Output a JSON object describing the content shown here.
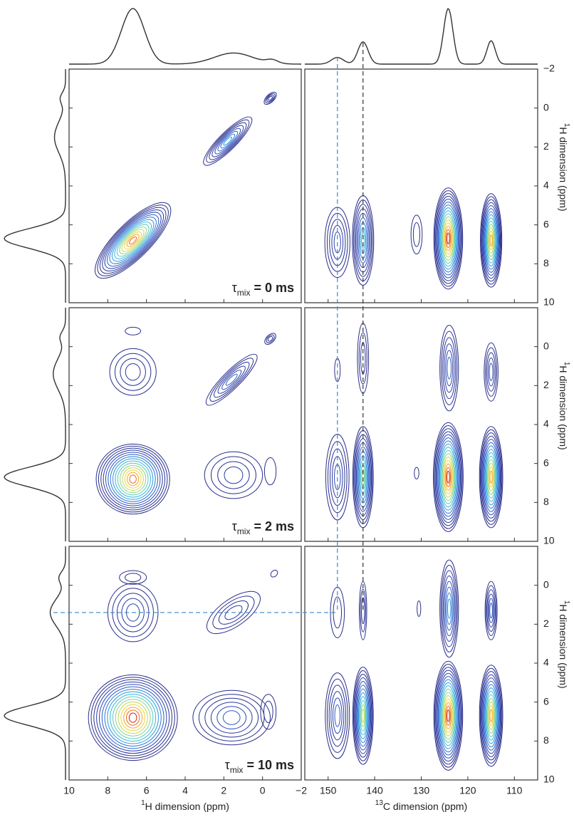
{
  "x_axis_left": {
    "superscript": "1",
    "text": "H dimension (ppm)",
    "xlim": [
      10,
      -2
    ],
    "xticks": [
      10,
      8,
      6,
      4,
      2,
      0,
      {
        "value": -2,
        "label": "−2"
      }
    ]
  },
  "x_axis_right": {
    "superscript": "13",
    "text": "C dimension (ppm)",
    "xlim": [
      155,
      105
    ],
    "xticks": [
      150,
      140,
      130,
      120,
      110
    ]
  },
  "y_axis": {
    "superscript": "1",
    "text": "H dimension (ppm)",
    "ylim": [
      -2,
      10
    ]
  },
  "colormap": [
    "#2a2f8c",
    "#2a2f8c",
    "#2a3294",
    "#2b3aa0",
    "#2c46b2",
    "#2c5cc8",
    "#2a78d8",
    "#2a98e0",
    "#34b8d8",
    "#5cc9b8",
    "#8fd38a",
    "#c3d95a",
    "#f0d43a",
    "#f6a52a",
    "#ee6a20",
    "#d8261c"
  ],
  "line_color": "#333333",
  "top_projection": {
    "h1_peaks": [
      {
        "x": 6.7,
        "h": 1,
        "w": 0.6
      },
      {
        "x": 1.5,
        "h": 0.2,
        "w": 1.0
      },
      {
        "x": -0.5,
        "h": 0.06,
        "w": 0.3
      }
    ],
    "c13_peaks": [
      {
        "x": 148,
        "h": 0.12,
        "w": 1.3
      },
      {
        "x": 142.5,
        "h": 0.4,
        "w": 1.1
      },
      {
        "x": 124.2,
        "h": 1,
        "w": 1.0
      },
      {
        "x": 115,
        "h": 0.42,
        "w": 0.9
      }
    ]
  },
  "rows": [
    {
      "label": {
        "symbol": "τ",
        "subscript": "mix",
        "text": "= 0 ms"
      },
      "yticks": [
        {
          "value": -2,
          "label": "−2"
        },
        0,
        2,
        4,
        6,
        8,
        10
      ],
      "side_projection": [
        {
          "y": 6.7,
          "h": 1,
          "w": 0.5
        },
        {
          "y": 1.5,
          "h": 0.18,
          "w": 0.8
        },
        {
          "y": -0.5,
          "h": 0.08,
          "w": 0.3
        }
      ],
      "h1_peaks": [
        {
          "x": 6.7,
          "y": 6.8,
          "wx": 2.6,
          "wy": 0.9,
          "tilt": 45,
          "levels": 15
        },
        {
          "x": 1.8,
          "y": 1.7,
          "wx": 1.7,
          "wy": 0.45,
          "tilt": 45,
          "levels": 8
        },
        {
          "x": -0.4,
          "y": -0.5,
          "wx": 0.4,
          "wy": 0.2,
          "tilt": 45,
          "levels": 4
        }
      ],
      "c13_peaks": [
        {
          "x": 148,
          "y": 6.9,
          "wx": 2.7,
          "wy": 1.8,
          "tilt": 0,
          "levels": 5
        },
        {
          "x": 142.5,
          "y": 6.8,
          "wx": 2.3,
          "wy": 2.3,
          "tilt": 0,
          "levels": 9
        },
        {
          "x": 131,
          "y": 6.5,
          "wx": 1.2,
          "wy": 1.0,
          "tilt": 0,
          "levels": 2
        },
        {
          "x": 124.2,
          "y": 6.7,
          "wx": 3.1,
          "wy": 2.6,
          "tilt": 0,
          "levels": 16
        },
        {
          "x": 115,
          "y": 6.8,
          "wx": 2.3,
          "wy": 2.4,
          "tilt": 0,
          "levels": 14
        }
      ]
    },
    {
      "label": {
        "symbol": "τ",
        "subscript": "mix",
        "text": "= 2 ms"
      },
      "yticks": [
        0,
        2,
        4,
        6,
        8,
        10
      ],
      "side_projection": [
        {
          "y": 6.7,
          "h": 1,
          "w": 0.5
        },
        {
          "y": 1.4,
          "h": 0.2,
          "w": 0.8
        },
        {
          "y": -0.5,
          "h": 0.08,
          "w": 0.3
        }
      ],
      "h1_peaks": [
        {
          "x": 6.7,
          "y": 6.8,
          "wx": 1.9,
          "wy": 1.8,
          "tilt": 0,
          "levels": 15
        },
        {
          "x": 6.7,
          "y": 1.3,
          "wx": 1.2,
          "wy": 1.2,
          "tilt": 0,
          "levels": 4
        },
        {
          "x": 6.7,
          "y": -0.8,
          "wx": 0.4,
          "wy": 0.2,
          "tilt": 0,
          "levels": 1
        },
        {
          "x": 1.5,
          "y": 6.6,
          "wx": 1.5,
          "wy": 1.2,
          "tilt": 0,
          "levels": 4
        },
        {
          "x": -0.4,
          "y": 6.4,
          "wx": 0.3,
          "wy": 0.7,
          "tilt": 0,
          "levels": 1
        },
        {
          "x": 1.6,
          "y": 1.7,
          "wx": 1.8,
          "wy": 0.45,
          "tilt": 45,
          "levels": 6
        },
        {
          "x": -0.4,
          "y": -0.4,
          "wx": 0.35,
          "wy": 0.2,
          "tilt": 45,
          "levels": 3
        }
      ],
      "c13_peaks": [
        {
          "x": 148,
          "y": 6.7,
          "wx": 2.5,
          "wy": 2.2,
          "tilt": 0,
          "levels": 5
        },
        {
          "x": 142.5,
          "y": 6.7,
          "wx": 2.2,
          "wy": 2.6,
          "tilt": 0,
          "levels": 11
        },
        {
          "x": 148,
          "y": 1.2,
          "wx": 0.6,
          "wy": 0.6,
          "tilt": 0,
          "levels": 1
        },
        {
          "x": 142.5,
          "y": 0.6,
          "wx": 1.2,
          "wy": 1.8,
          "tilt": 0,
          "levels": 3
        },
        {
          "x": 131,
          "y": 6.5,
          "wx": 0.5,
          "wy": 0.3,
          "tilt": 0,
          "levels": 1
        },
        {
          "x": 124.2,
          "y": 6.7,
          "wx": 3.2,
          "wy": 2.8,
          "tilt": 0,
          "levels": 16
        },
        {
          "x": 115,
          "y": 6.7,
          "wx": 2.5,
          "wy": 2.6,
          "tilt": 0,
          "levels": 14
        },
        {
          "x": 124,
          "y": 1.1,
          "wx": 2.0,
          "wy": 2.2,
          "tilt": 0,
          "levels": 6
        },
        {
          "x": 115,
          "y": 1.3,
          "wx": 1.5,
          "wy": 1.5,
          "tilt": 0,
          "levels": 5
        }
      ]
    },
    {
      "label": {
        "symbol": "τ",
        "subscript": "mix",
        "text": "= 10 ms"
      },
      "yticks": [
        0,
        2,
        4,
        6,
        8,
        10
      ],
      "side_projection": [
        {
          "y": 6.7,
          "h": 1,
          "w": 0.5
        },
        {
          "y": 1.4,
          "h": 0.25,
          "w": 0.7
        },
        {
          "y": -0.4,
          "h": 0.1,
          "w": 0.3
        }
      ],
      "h1_peaks": [
        {
          "x": 6.7,
          "y": 6.8,
          "wx": 2.3,
          "wy": 2.2,
          "tilt": 0,
          "levels": 16
        },
        {
          "x": 6.7,
          "y": 1.4,
          "wx": 1.3,
          "wy": 1.5,
          "tilt": 0,
          "levels": 5
        },
        {
          "x": 6.7,
          "y": -0.4,
          "wx": 0.7,
          "wy": 0.35,
          "tilt": 0,
          "levels": 2
        },
        {
          "x": 1.6,
          "y": 6.8,
          "wx": 2.0,
          "wy": 1.4,
          "tilt": 0,
          "levels": 6
        },
        {
          "x": -0.3,
          "y": 6.5,
          "wx": 0.4,
          "wy": 0.9,
          "tilt": 0,
          "levels": 2
        },
        {
          "x": 1.5,
          "y": 1.4,
          "wx": 1.6,
          "wy": 0.7,
          "tilt": 35,
          "levels": 4
        },
        {
          "x": -0.6,
          "y": -0.6,
          "wx": 0.2,
          "wy": 0.15,
          "tilt": 45,
          "levels": 1
        }
      ],
      "c13_peaks": [
        {
          "x": 148,
          "y": 6.7,
          "wx": 2.6,
          "wy": 2.2,
          "tilt": 0,
          "levels": 6
        },
        {
          "x": 142.5,
          "y": 6.7,
          "wx": 2.2,
          "wy": 2.5,
          "tilt": 0,
          "levels": 12
        },
        {
          "x": 148,
          "y": 1.4,
          "wx": 1.5,
          "wy": 1.3,
          "tilt": 0,
          "levels": 2
        },
        {
          "x": 142.5,
          "y": 1.3,
          "wx": 0.8,
          "wy": 1.5,
          "tilt": 0,
          "levels": 3
        },
        {
          "x": 130.5,
          "y": 1.2,
          "wx": 0.4,
          "wy": 0.4,
          "tilt": 0,
          "levels": 1
        },
        {
          "x": 124.2,
          "y": 6.7,
          "wx": 3.1,
          "wy": 2.8,
          "tilt": 0,
          "levels": 16
        },
        {
          "x": 115,
          "y": 6.7,
          "wx": 2.5,
          "wy": 2.6,
          "tilt": 0,
          "levels": 14
        },
        {
          "x": 124,
          "y": 1.2,
          "wx": 2.0,
          "wy": 2.5,
          "tilt": 0,
          "levels": 8
        },
        {
          "x": 115,
          "y": 1.3,
          "wx": 1.3,
          "wy": 1.5,
          "tilt": 0,
          "levels": 6
        }
      ]
    }
  ],
  "guides": [
    {
      "color": "#3a86c8",
      "c13": 148,
      "h1": 1.4,
      "horizontal": true
    },
    {
      "color": "#333333",
      "c13": 142.5,
      "h1": 1.4,
      "horizontal": false
    }
  ]
}
